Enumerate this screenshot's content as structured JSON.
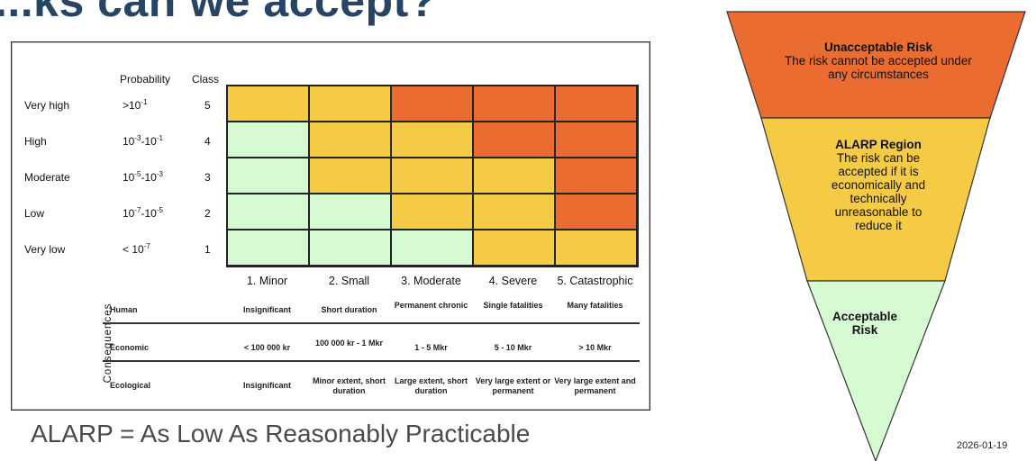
{
  "page": {
    "title": "...ks can we accept?",
    "footnote": "ALARP = As Low As Reasonably Practicable",
    "date": "2026-01-19"
  },
  "matrix": {
    "headers": {
      "probability": "Probability",
      "class": "Class"
    },
    "rows": [
      {
        "label": "Very high",
        "prob_base": ">10",
        "prob_exp": "-1",
        "prob_base2": "",
        "prob_exp2": "",
        "class": "5",
        "cells": [
          "yellow",
          "yellow",
          "orange",
          "orange",
          "orange"
        ]
      },
      {
        "label": "High",
        "prob_base": "10",
        "prob_exp": "-3",
        "prob_base2": "-10",
        "prob_exp2": "-1",
        "class": "4",
        "cells": [
          "green",
          "yellow",
          "yellow",
          "orange",
          "orange"
        ]
      },
      {
        "label": "Moderate",
        "prob_base": "10",
        "prob_exp": "-5",
        "prob_base2": "-10",
        "prob_exp2": "-3",
        "class": "3",
        "cells": [
          "green",
          "yellow",
          "yellow",
          "yellow",
          "orange"
        ]
      },
      {
        "label": "Low",
        "prob_base": "10",
        "prob_exp": "-7",
        "prob_base2": "-10",
        "prob_exp2": "-5",
        "class": "2",
        "cells": [
          "green",
          "green",
          "yellow",
          "yellow",
          "orange"
        ]
      },
      {
        "label": "Very low",
        "prob_base": "< 10",
        "prob_exp": "-7",
        "prob_base2": "",
        "prob_exp2": "",
        "class": "1",
        "cells": [
          "green",
          "green",
          "green",
          "yellow",
          "yellow"
        ]
      }
    ],
    "severity": [
      "1. Minor",
      "2. Small",
      "3. Moderate",
      "4. Severe",
      "5. Catastrophic"
    ],
    "colors": {
      "green": "#d6fbd2",
      "yellow": "#f5cb45",
      "orange": "#eb6c31"
    }
  },
  "consequences": {
    "label": "Consequences",
    "rows": [
      {
        "label": "Human",
        "values": [
          "Insignificant",
          "Short duration",
          "Permanent chronic",
          "Single fatalities",
          "Many fatalities"
        ]
      },
      {
        "label": "Economic",
        "values": [
          "< 100 000 kr",
          "100 000 kr - 1 Mkr",
          "1 - 5 Mkr",
          "5 - 10 Mkr",
          "> 10 Mkr"
        ]
      },
      {
        "label": "Ecological",
        "values": [
          "Insignificant",
          "Minor extent, short duration",
          "Large extent, short duration",
          "Very large extent or permanent",
          "Very large extent and permanent"
        ]
      }
    ]
  },
  "funnel": {
    "unacceptable": {
      "title": "Unacceptable Risk",
      "text": "The risk cannot be accepted under any circumstances",
      "color": "#eb6c31"
    },
    "alarp": {
      "title": "ALARP Region",
      "text": "The risk can be accepted if it is economically and technically unreasonable to reduce it",
      "color": "#f5cb45"
    },
    "acceptable": {
      "title": "Acceptable Risk",
      "color": "#d6fbd2"
    }
  }
}
